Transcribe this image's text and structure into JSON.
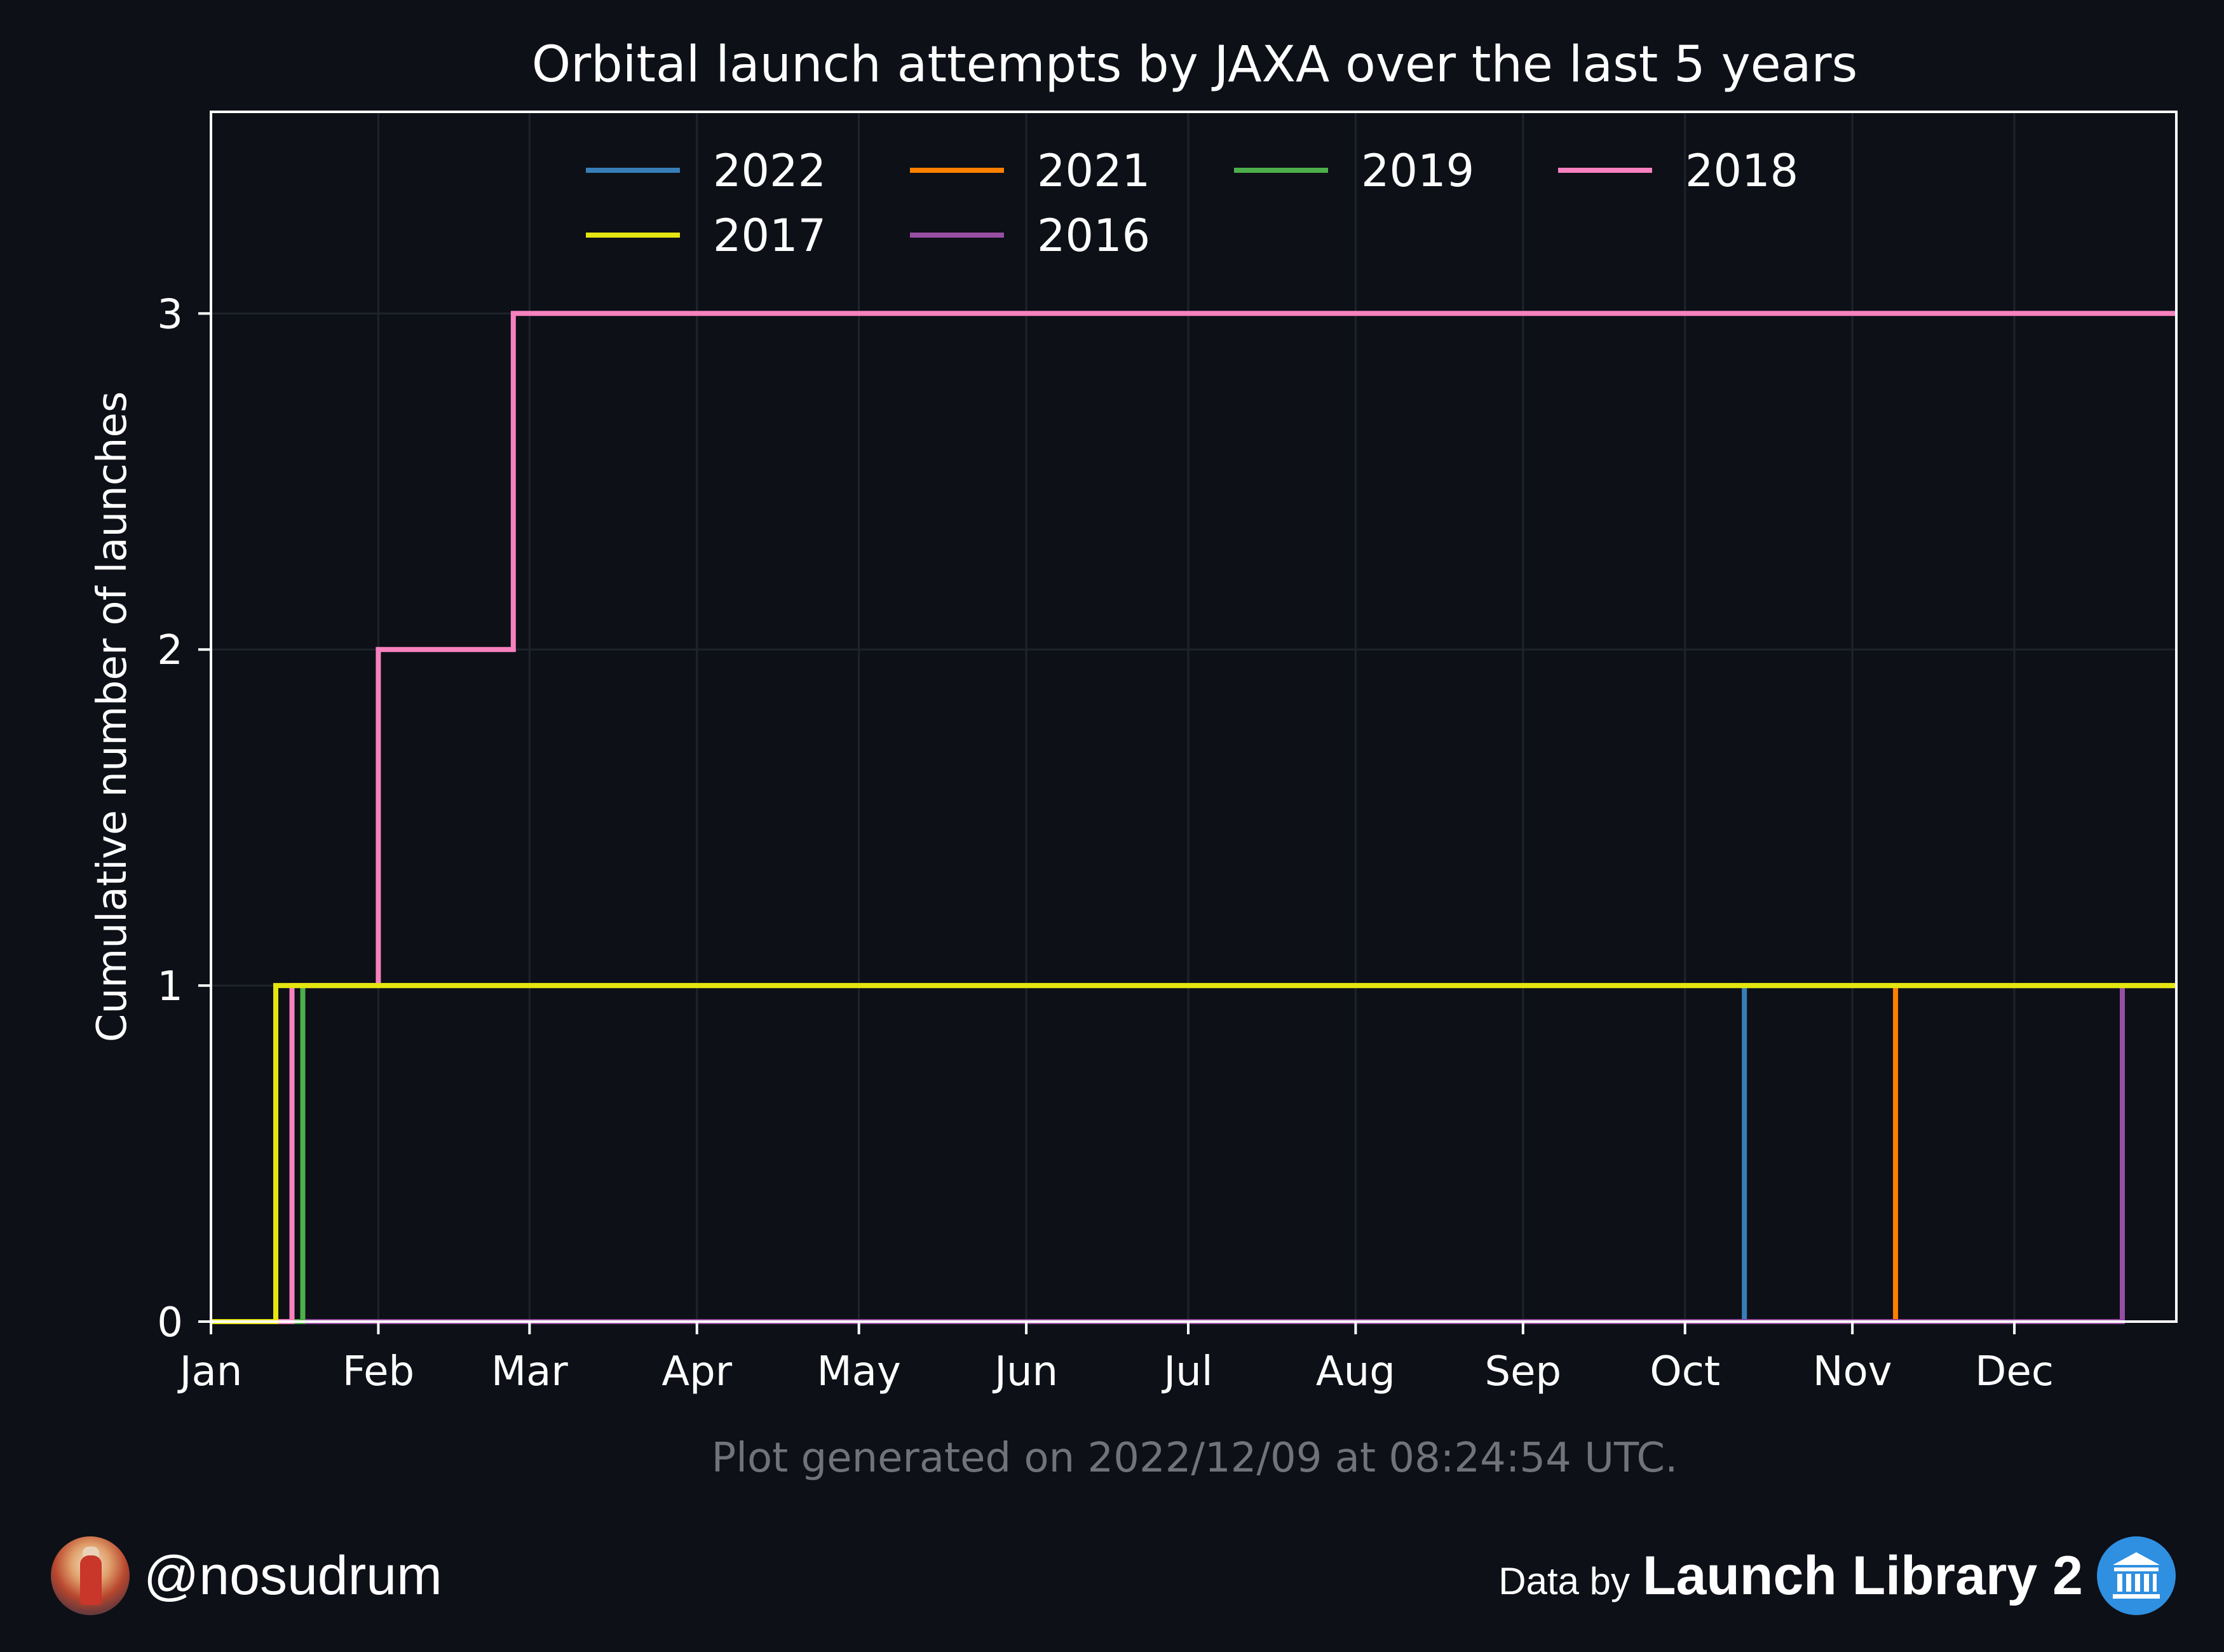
{
  "chart_data": {
    "type": "line",
    "step": "post",
    "title": "Orbital launch attempts by JAXA over the last 5 years",
    "xlabel": "",
    "ylabel": "Cumulative number of launches",
    "xlim_day_of_year": [
      1,
      365
    ],
    "ylim": [
      0,
      3.6
    ],
    "x_ticks": [
      {
        "label": "Jan",
        "day": 1
      },
      {
        "label": "Feb",
        "day": 32
      },
      {
        "label": "Mar",
        "day": 60
      },
      {
        "label": "Apr",
        "day": 91
      },
      {
        "label": "May",
        "day": 121
      },
      {
        "label": "Jun",
        "day": 152
      },
      {
        "label": "Jul",
        "day": 182
      },
      {
        "label": "Aug",
        "day": 213
      },
      {
        "label": "Sep",
        "day": 244
      },
      {
        "label": "Oct",
        "day": 274
      },
      {
        "label": "Nov",
        "day": 305
      },
      {
        "label": "Dec",
        "day": 335
      }
    ],
    "y_ticks": [
      0,
      1,
      2,
      3
    ],
    "grid": true,
    "legend": {
      "placement": "top-center",
      "columns": 4
    },
    "series": [
      {
        "name": "2022",
        "color": "#377eb8",
        "launch_days": [
          285
        ]
      },
      {
        "name": "2021",
        "color": "#ff7f00",
        "launch_days": [
          313
        ]
      },
      {
        "name": "2019",
        "color": "#4daf4a",
        "launch_days": [
          18
        ]
      },
      {
        "name": "2018",
        "color": "#f781bf",
        "launch_days": [
          16,
          32,
          57
        ]
      },
      {
        "name": "2017",
        "color": "#e5e510",
        "launch_days": [
          13
        ]
      },
      {
        "name": "2016",
        "color": "#984ea3",
        "launch_days": [
          355
        ]
      }
    ],
    "annotation": "Plot generated on 2022/12/09 at 08:24:54 UTC."
  },
  "footer": {
    "handle": "@nosudrum",
    "data_by": "Data by",
    "brand": "Launch Library 2"
  },
  "icons": {
    "avatar": "astronaut-avatar",
    "brand": "museum-icon"
  }
}
